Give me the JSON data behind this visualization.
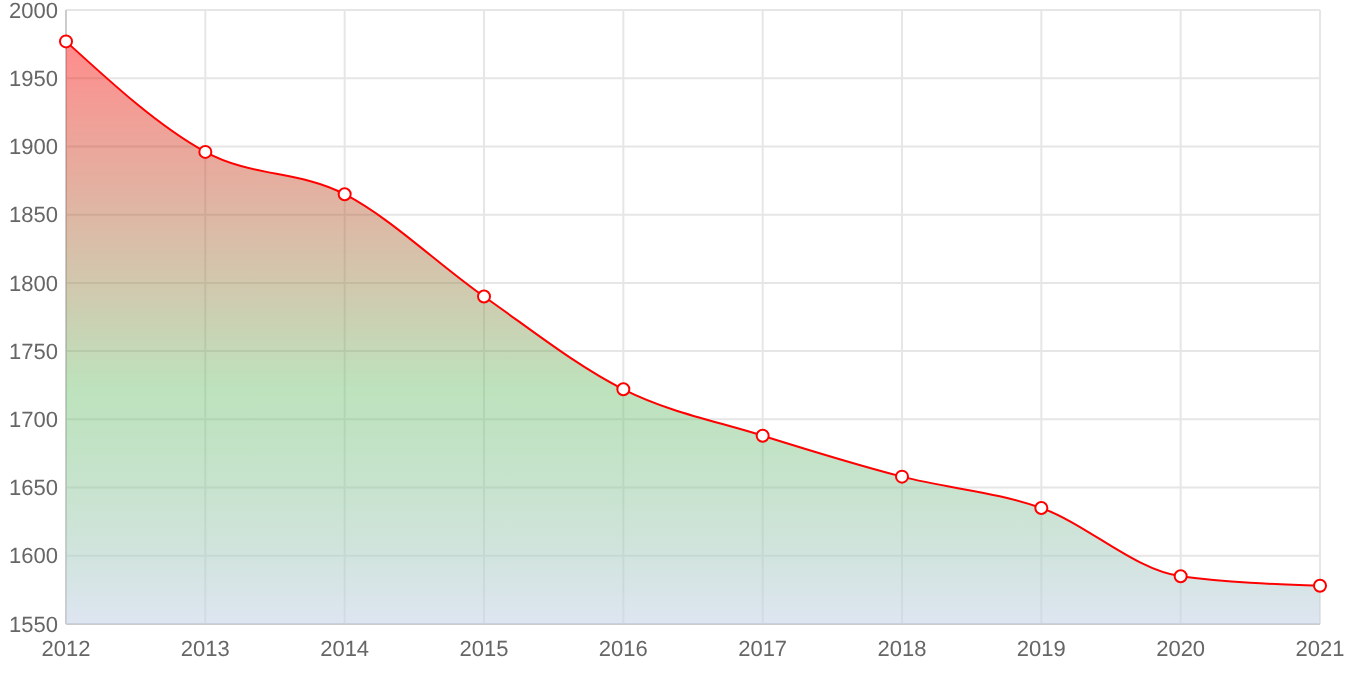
{
  "chart_data": {
    "type": "area",
    "x": [
      2012,
      2013,
      2014,
      2015,
      2016,
      2017,
      2018,
      2019,
      2020,
      2021
    ],
    "series": [
      {
        "color": "#ff0000",
        "values": [
          1977,
          1896,
          1865,
          1790,
          1722,
          1688,
          1658,
          1635,
          1585,
          1578
        ]
      }
    ],
    "xlim": [
      2012,
      2021
    ],
    "xticks": [
      2012,
      2013,
      2014,
      2015,
      2016,
      2017,
      2018,
      2019,
      2020,
      2021
    ],
    "ylim": [
      1550,
      2000
    ],
    "yticks": [
      1550,
      1600,
      1650,
      1700,
      1750,
      1800,
      1850,
      1900,
      1950,
      2000
    ],
    "grid": true,
    "marker": "circle",
    "line_style": "solid"
  }
}
